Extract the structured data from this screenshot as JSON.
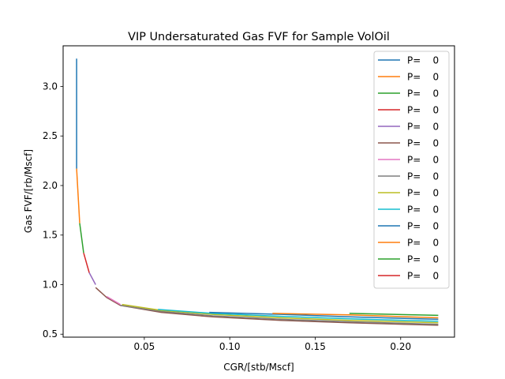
{
  "chart_data": {
    "type": "line",
    "title": "VIP  Undersaturated Gas FVF for Sample VolOil",
    "xlabel": "CGR/[stb/Mscf]",
    "ylabel": "Gas FVF/[rb/Mscf]",
    "xlim": [
      0.0025,
      0.2315
    ],
    "ylim": [
      0.47,
      3.41
    ],
    "xticks": [
      0.05,
      0.1,
      0.15,
      0.2
    ],
    "xtick_labels": [
      "0.05",
      "0.10",
      "0.15",
      "0.20"
    ],
    "yticks": [
      0.5,
      1.0,
      1.5,
      2.0,
      2.5,
      3.0
    ],
    "ytick_labels": [
      "0.5",
      "1.0",
      "1.5",
      "2.0",
      "2.5",
      "3.0"
    ],
    "grid": false,
    "legend_position": "top-right",
    "series": [
      {
        "name": "P=    0",
        "color": "#1f77b4",
        "x": [
          0.0104,
          0.0104
        ],
        "y": [
          3.28,
          2.17
        ]
      },
      {
        "name": "P=    0",
        "color": "#ff7f0e",
        "x": [
          0.0104,
          0.0122
        ],
        "y": [
          2.17,
          1.62
        ]
      },
      {
        "name": "P=    0",
        "color": "#2ca02c",
        "x": [
          0.0122,
          0.0145
        ],
        "y": [
          1.62,
          1.32
        ]
      },
      {
        "name": "P=    0",
        "color": "#d62728",
        "x": [
          0.0145,
          0.0178
        ],
        "y": [
          1.32,
          1.12
        ]
      },
      {
        "name": "P=    0",
        "color": "#9467bd",
        "x": [
          0.0178,
          0.0215
        ],
        "y": [
          1.12,
          1.0
        ]
      },
      {
        "name": "P=    0",
        "color": "#8c564b",
        "x": [
          0.0215,
          0.028,
          0.036,
          0.06,
          0.09,
          0.13,
          0.17,
          0.222
        ],
        "y": [
          0.97,
          0.87,
          0.79,
          0.72,
          0.675,
          0.64,
          0.615,
          0.59
        ]
      },
      {
        "name": "P=    0",
        "color": "#e377c2",
        "x": [
          0.028,
          0.036
        ],
        "y": [
          0.88,
          0.8
        ]
      },
      {
        "name": "P=    0",
        "color": "#7f7f7f",
        "x": [
          0.036,
          0.06,
          0.09,
          0.13,
          0.17,
          0.222
        ],
        "y": [
          0.79,
          0.73,
          0.685,
          0.65,
          0.625,
          0.6
        ]
      },
      {
        "name": "P=    0",
        "color": "#bcbd22",
        "x": [
          0.037,
          0.06,
          0.09,
          0.13,
          0.17,
          0.222
        ],
        "y": [
          0.8,
          0.74,
          0.7,
          0.665,
          0.64,
          0.615
        ]
      },
      {
        "name": "P=    0",
        "color": "#17becf",
        "x": [
          0.058,
          0.09,
          0.13,
          0.17,
          0.222
        ],
        "y": [
          0.75,
          0.71,
          0.68,
          0.655,
          0.63
        ]
      },
      {
        "name": "P=    0",
        "color": "#1f77b4",
        "x": [
          0.088,
          0.13,
          0.17,
          0.222
        ],
        "y": [
          0.72,
          0.7,
          0.675,
          0.65
        ]
      },
      {
        "name": "P=    0",
        "color": "#ff7f0e",
        "x": [
          0.125,
          0.17,
          0.222
        ],
        "y": [
          0.71,
          0.695,
          0.665
        ]
      },
      {
        "name": "P=    0",
        "color": "#2ca02c",
        "x": [
          0.17,
          0.222
        ],
        "y": [
          0.71,
          0.69
        ]
      },
      {
        "name": "P=    0",
        "color": "#d62728",
        "x": [
          0.222
        ],
        "y": [
          0.7
        ]
      }
    ]
  }
}
